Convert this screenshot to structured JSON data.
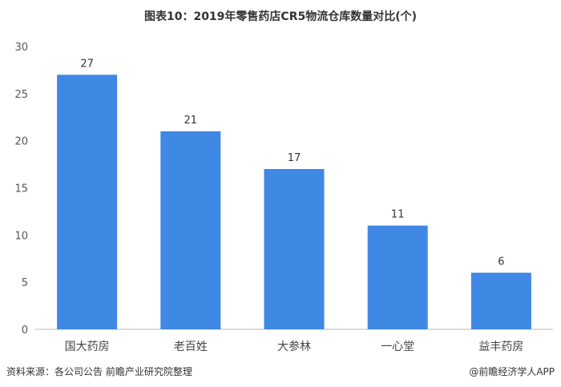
{
  "title": "图表10：2019年零售药店CR5物流仓库数量对比(个)",
  "source": "资料来源：各公司公告 前瞻产业研究院整理",
  "brand": "@前瞻经济学人APP",
  "colors": {
    "bar": "#3f88e3",
    "axis": "#bbbbbb"
  },
  "chart_data": {
    "type": "bar",
    "title": "图表10：2019年零售药店CR5物流仓库数量对比(个)",
    "categories": [
      "国大药房",
      "老百姓",
      "大参林",
      "一心堂",
      "益丰药房"
    ],
    "values": [
      27,
      21,
      17,
      11,
      6
    ],
    "ylim": [
      0,
      30
    ],
    "yticks": [
      0,
      5,
      10,
      15,
      20,
      25,
      30
    ],
    "xlabel": "",
    "ylabel": "",
    "grid": false
  }
}
